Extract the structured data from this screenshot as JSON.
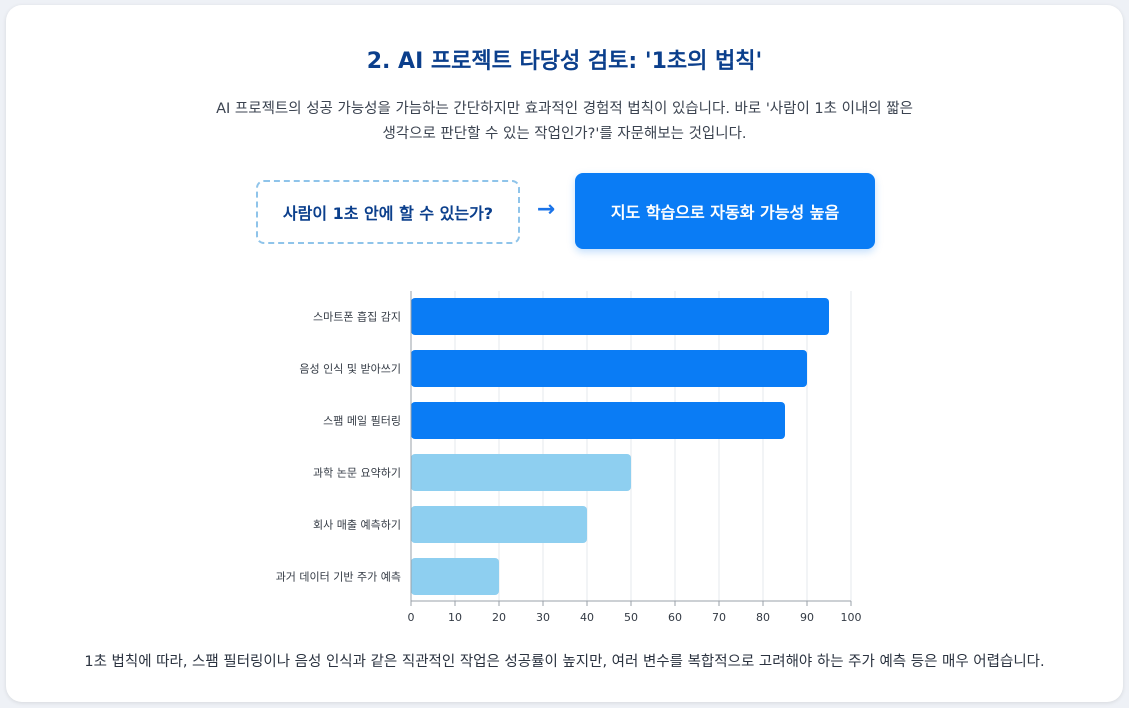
{
  "header": {
    "title": "2. AI 프로젝트 타당성 검토: '1초의 법칙'",
    "intro_line1": "AI 프로젝트의 성공 가능성을 가늠하는 간단하지만 효과적인 경험적 법칙이 있습니다. 바로 '사람이 1초 이내의 짧은",
    "intro_line2": "생각으로 판단할 수 있는 작업인가?'를 자문해보는 것입니다."
  },
  "rule": {
    "question": "사람이 1초 안에 할 수 있는가?",
    "arrow": "→",
    "result": "지도 학습으로 자동화 가능성 높음"
  },
  "chart_data": {
    "type": "bar",
    "orientation": "horizontal",
    "categories": [
      "스마트폰 흡집 감지",
      "음성 인식 및 받아쓰기",
      "스팸 메일 필터링",
      "과학 논문 요약하기",
      "회사 매출 예측하기",
      "과거 데이터 기반 주가 예측"
    ],
    "values": [
      95,
      90,
      85,
      50,
      40,
      20
    ],
    "xlim": [
      0,
      100
    ],
    "xticks": [
      0,
      10,
      20,
      30,
      40,
      50,
      60,
      70,
      80,
      90,
      100
    ],
    "grid": true,
    "colors": {
      "high": "#0a7cf5",
      "low": "#8ecff0",
      "grid": "#e6e8ec",
      "axis": "#9aa0a8",
      "label": "#333a44"
    },
    "high_count": 3
  },
  "footer": {
    "text": "1초 법칙에 따라, 스팸 필터링이나 음성 인식과 같은 직관적인 작업은 성공률이 높지만, 여러 변수를 복합적으로 고려해야 하는 주가 예측 등은 매우 어렵습니다."
  }
}
